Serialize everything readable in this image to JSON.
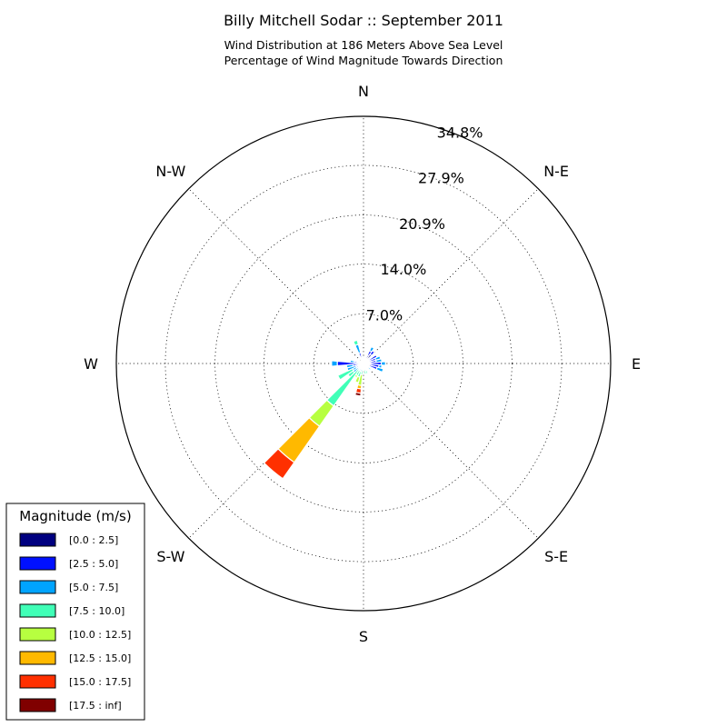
{
  "chart_data": {
    "type": "windrose",
    "title": "Billy Mitchell Sodar :: September 2011",
    "subtitle_lines": [
      "Wind Distribution at 186 Meters Above Sea Level",
      "Percentage of Wind Magnitude Towards Direction"
    ],
    "directions": [
      {
        "label": "N",
        "angle": 0
      },
      {
        "label": "N-E",
        "angle": 45
      },
      {
        "label": "E",
        "angle": 90
      },
      {
        "label": "S-E",
        "angle": 135
      },
      {
        "label": "S",
        "angle": 180
      },
      {
        "label": "S-W",
        "angle": 225
      },
      {
        "label": "W",
        "angle": 270
      },
      {
        "label": "N-W",
        "angle": 315
      }
    ],
    "radial_max": 34.8,
    "radial_ticks": [
      7.0,
      14.0,
      20.9,
      27.9,
      34.8
    ],
    "radial_tick_labels": [
      "7.0%",
      "14.0%",
      "20.9%",
      "27.9%",
      "34.8%"
    ],
    "sector_width_deg": 10,
    "legend": {
      "title": "Magnitude (m/s)",
      "placement": "bottom-left",
      "bins": [
        {
          "label": "[0.0 : 2.5]",
          "color": "#000080"
        },
        {
          "label": "[2.5 : 5.0]",
          "color": "#0010ff"
        },
        {
          "label": "[5.0 : 7.5]",
          "color": "#00a4ff"
        },
        {
          "label": "[7.5 : 10.0]",
          "color": "#40ffb7"
        },
        {
          "label": "[10.0 : 12.5]",
          "color": "#b7ff40"
        },
        {
          "label": "[12.5 : 15.0]",
          "color": "#ffb900"
        },
        {
          "label": "[15.0 : 17.5]",
          "color": "#ff3000"
        },
        {
          "label": "[17.5 : inf]",
          "color": "#800000"
        }
      ]
    },
    "sectors": [
      {
        "dir": 0,
        "values": [
          0.2,
          0.3,
          0.2,
          0.0,
          0.0,
          0.0,
          0.0,
          0.0
        ]
      },
      {
        "dir": 10,
        "values": [
          0.4,
          0.4,
          0.0,
          0.0,
          0.0,
          0.0,
          0.0,
          0.0
        ]
      },
      {
        "dir": 20,
        "values": [
          1.0,
          0.0,
          0.0,
          0.0,
          0.0,
          0.0,
          0.0,
          0.0
        ]
      },
      {
        "dir": 30,
        "values": [
          1.3,
          0.7,
          0.6,
          0.0,
          0.0,
          0.0,
          0.0,
          0.0
        ]
      },
      {
        "dir": 40,
        "values": [
          1.6,
          0.6,
          0.0,
          0.0,
          0.0,
          0.0,
          0.0,
          0.0
        ]
      },
      {
        "dir": 50,
        "values": [
          0.0,
          1.1,
          0.0,
          0.0,
          0.0,
          0.0,
          0.0,
          0.0
        ]
      },
      {
        "dir": 60,
        "values": [
          0.9,
          1.2,
          0.0,
          0.0,
          0.0,
          0.0,
          0.0,
          0.0
        ]
      },
      {
        "dir": 70,
        "values": [
          0.0,
          1.8,
          0.7,
          0.0,
          0.0,
          0.0,
          0.0,
          0.0
        ]
      },
      {
        "dir": 80,
        "values": [
          0.2,
          1.6,
          0.8,
          0.0,
          0.0,
          0.0,
          0.0,
          0.0
        ]
      },
      {
        "dir": 90,
        "values": [
          0.2,
          2.3,
          0.6,
          0.0,
          0.0,
          0.0,
          0.0,
          0.0
        ]
      },
      {
        "dir": 100,
        "values": [
          0.3,
          1.9,
          0.4,
          0.0,
          0.0,
          0.0,
          0.0,
          0.0
        ]
      },
      {
        "dir": 110,
        "values": [
          0.3,
          1.7,
          0.9,
          0.0,
          0.0,
          0.0,
          0.0,
          0.0
        ]
      },
      {
        "dir": 120,
        "values": [
          0.2,
          0.5,
          0.0,
          0.0,
          0.0,
          0.0,
          0.0,
          0.0
        ]
      },
      {
        "dir": 130,
        "values": [
          0.5,
          0.0,
          0.8,
          0.0,
          0.0,
          0.0,
          0.0,
          0.0
        ]
      },
      {
        "dir": 140,
        "values": [
          0.2,
          0.6,
          0.0,
          0.0,
          0.0,
          0.0,
          0.0,
          0.0
        ]
      },
      {
        "dir": 150,
        "values": [
          0.4,
          0.0,
          0.0,
          0.0,
          0.0,
          0.0,
          0.0,
          0.0
        ]
      },
      {
        "dir": 160,
        "values": [
          0.3,
          0.0,
          0.7,
          0.5,
          0.0,
          0.0,
          0.0,
          0.0
        ]
      },
      {
        "dir": 170,
        "values": [
          0.4,
          0.3,
          0.0,
          0.8,
          0.0,
          0.0,
          0.0,
          0.0
        ]
      },
      {
        "dir": 180,
        "values": [
          0.0,
          0.0,
          0.0,
          0.0,
          0.0,
          0.0,
          0.0,
          0.0
        ]
      },
      {
        "dir": 190,
        "values": [
          0.2,
          0.2,
          0.4,
          0.8,
          1.5,
          0.5,
          0.6,
          0.4
        ]
      },
      {
        "dir": 200,
        "values": [
          0.2,
          0.4,
          0.6,
          0.8,
          0.8,
          0.0,
          0.0,
          0.0
        ]
      },
      {
        "dir": 210,
        "values": [
          0.2,
          0.3,
          0.6,
          0.8,
          0.3,
          0.0,
          0.0,
          0.0
        ]
      },
      {
        "dir": 220,
        "values": [
          0.2,
          0.3,
          0.5,
          6.3,
          3.5,
          6.2,
          2.8,
          0.0
        ]
      },
      {
        "dir": 230,
        "values": [
          0.3,
          0.5,
          1.0,
          0.9,
          0.0,
          0.0,
          0.0,
          0.0
        ]
      },
      {
        "dir": 240,
        "values": [
          0.3,
          0.8,
          0.6,
          2.3,
          0.0,
          0.0,
          0.0,
          0.0
        ]
      },
      {
        "dir": 250,
        "values": [
          0.3,
          0.8,
          1.3,
          0.0,
          0.0,
          0.0,
          0.0,
          0.0
        ]
      },
      {
        "dir": 260,
        "values": [
          0.3,
          1.2,
          0.9,
          0.0,
          0.0,
          0.0,
          0.0,
          0.0
        ]
      },
      {
        "dir": 270,
        "values": [
          0.3,
          3.4,
          0.8,
          0.0,
          0.0,
          0.0,
          0.0,
          0.0
        ]
      },
      {
        "dir": 280,
        "values": [
          0.3,
          1.0,
          0.6,
          0.0,
          0.0,
          0.0,
          0.0,
          0.0
        ]
      },
      {
        "dir": 290,
        "values": [
          0.3,
          0.6,
          0.0,
          0.0,
          0.0,
          0.0,
          0.0,
          0.0
        ]
      },
      {
        "dir": 300,
        "values": [
          0.3,
          0.4,
          0.0,
          0.0,
          0.0,
          0.0,
          0.0,
          0.0
        ]
      },
      {
        "dir": 310,
        "values": [
          0.3,
          0.3,
          0.0,
          0.0,
          0.0,
          0.0,
          0.0,
          0.0
        ]
      },
      {
        "dir": 320,
        "values": [
          0.2,
          0.3,
          0.0,
          0.0,
          0.0,
          0.0,
          0.0,
          0.0
        ]
      },
      {
        "dir": 330,
        "values": [
          0.2,
          0.0,
          0.0,
          0.0,
          0.0,
          0.0,
          0.0,
          0.0
        ]
      },
      {
        "dir": 340,
        "values": [
          0.3,
          1.3,
          1.2,
          0.6,
          0.0,
          0.0,
          0.0,
          0.0
        ]
      },
      {
        "dir": 350,
        "values": [
          0.2,
          0.5,
          0.3,
          0.0,
          0.0,
          0.0,
          0.0,
          0.0
        ]
      }
    ]
  }
}
